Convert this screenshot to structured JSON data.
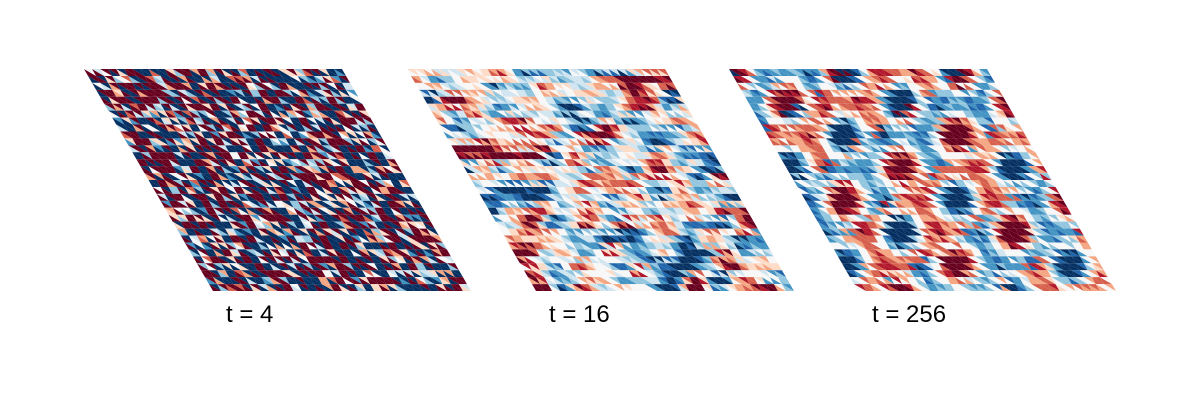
{
  "panels": [
    {
      "label": "t = 4",
      "step": 4,
      "style": "noise"
    },
    {
      "label": "t = 16",
      "step": 16,
      "style": "clusters"
    },
    {
      "label": "t = 256",
      "step": 256,
      "style": "hexagons"
    }
  ],
  "colormap": [
    "#053061",
    "#2166ac",
    "#4393c3",
    "#92c5de",
    "#d1e5f0",
    "#f7f7f7",
    "#fddbc7",
    "#f4a582",
    "#d6604d",
    "#b2182b",
    "#67001f"
  ]
}
